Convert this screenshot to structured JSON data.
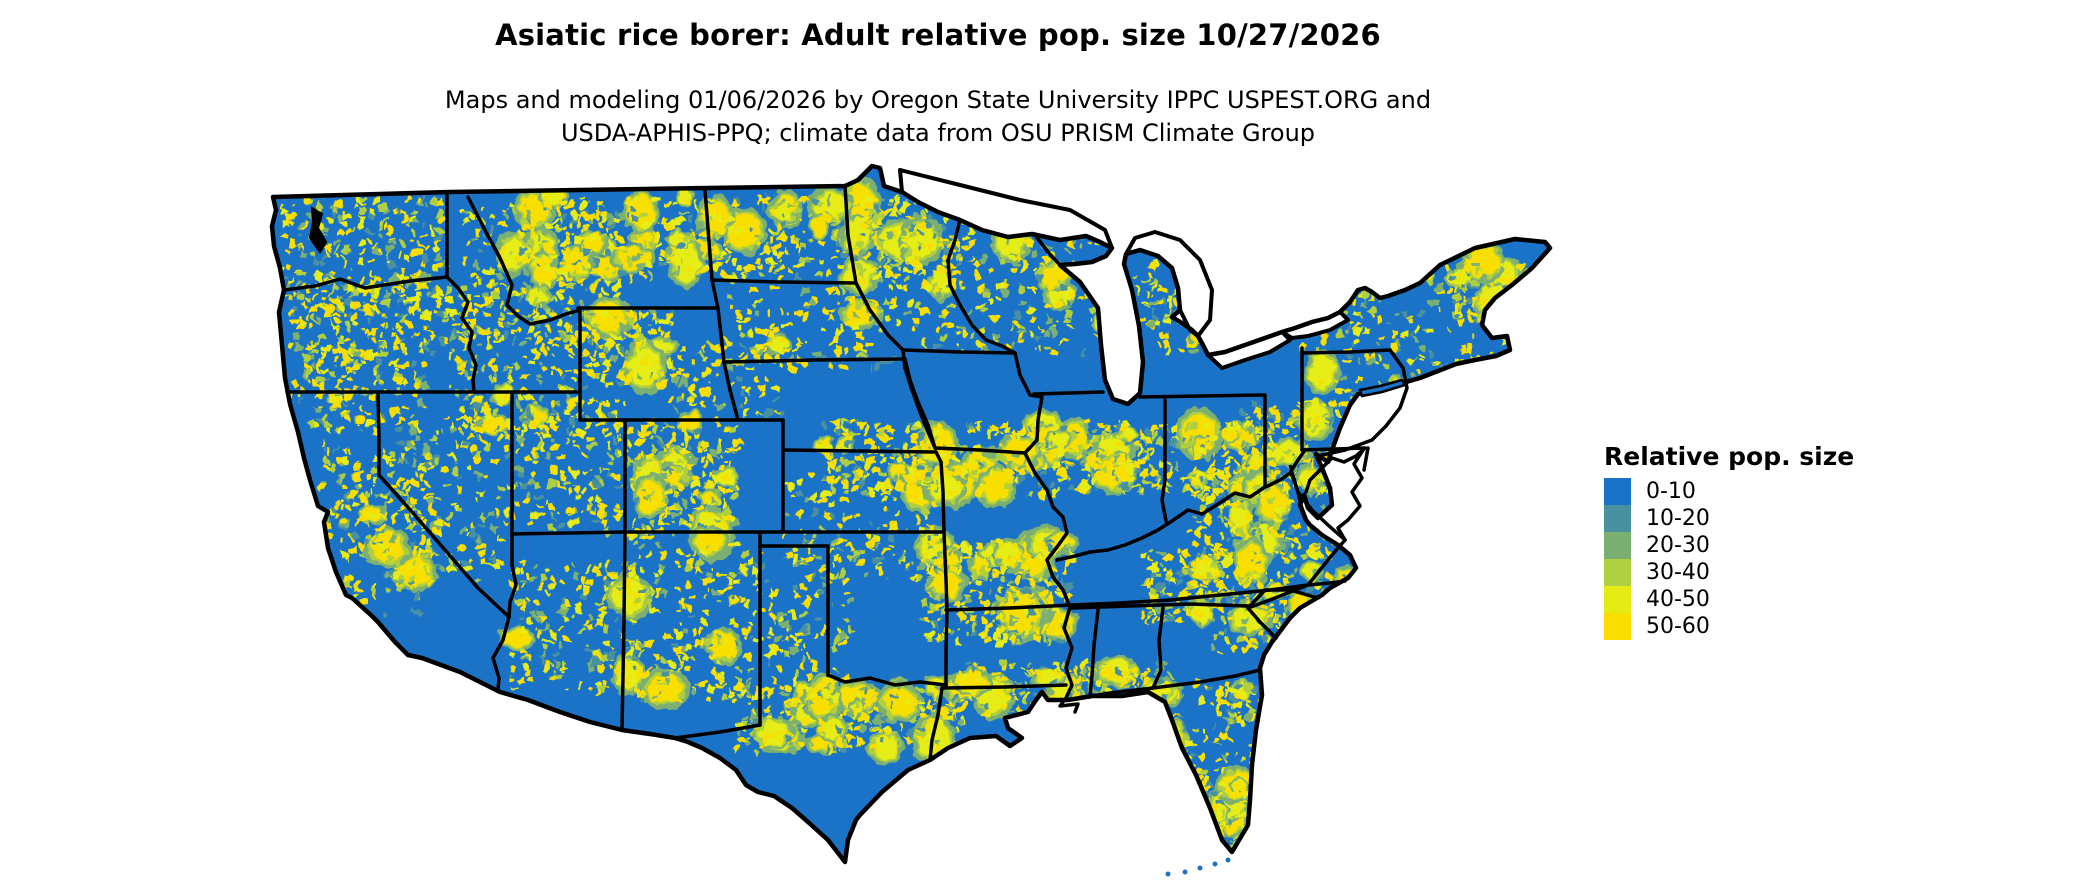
{
  "title": "Asiatic rice borer: Adult relative pop. size 10/27/2026",
  "subtitle": {
    "line1": "Maps and modeling 01/06/2026 by Oregon State University IPPC USPEST.ORG and",
    "line2": "USDA-APHIS-PPQ; climate data from OSU PRISM Climate Group"
  },
  "legend": {
    "title": "Relative pop. size",
    "items": [
      {
        "label": "0-10",
        "color": "#1b73c8"
      },
      {
        "label": "10-20",
        "color": "#4a91a0"
      },
      {
        "label": "20-30",
        "color": "#7baf72"
      },
      {
        "label": "30-40",
        "color": "#b0cf41"
      },
      {
        "label": "40-50",
        "color": "#e5ec15"
      },
      {
        "label": "50-60",
        "color": "#f8df00"
      }
    ]
  },
  "map": {
    "base_color": "#1b73c8",
    "border_color": "#000000",
    "water_color": "#ffffff",
    "background_color": "#ffffff"
  }
}
